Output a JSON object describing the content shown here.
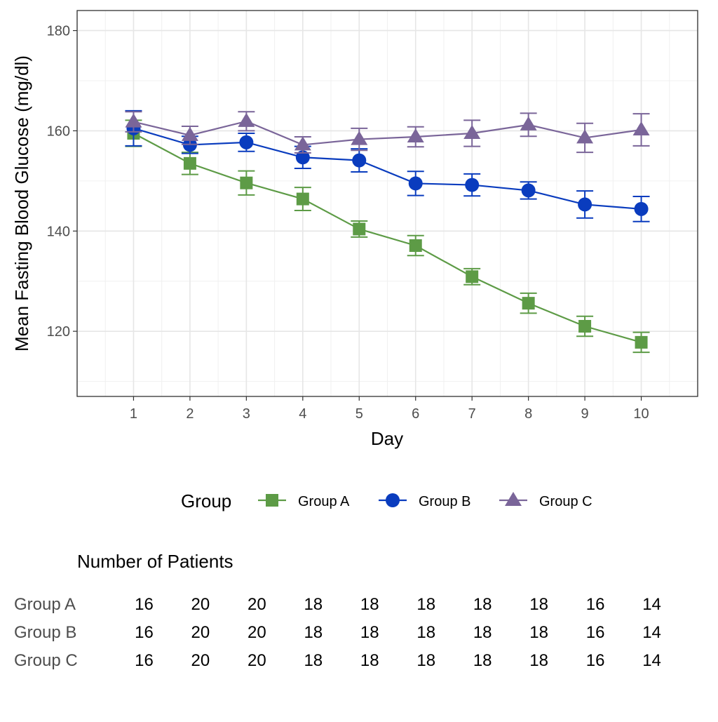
{
  "chart_data": {
    "type": "line",
    "xlabel": "Day",
    "ylabel": "Mean Fasting Blood Glucose (mg/dl)",
    "x": [
      1,
      2,
      3,
      4,
      5,
      6,
      7,
      8,
      9,
      10
    ],
    "xlim": [
      0,
      11
    ],
    "ylim": [
      107,
      184
    ],
    "yticks": [
      120,
      140,
      160,
      180
    ],
    "grid": true,
    "legend": {
      "title": "Group",
      "position": "bottom"
    },
    "series": [
      {
        "name": "Group A",
        "color": "#5d9b46",
        "marker": "square",
        "values": [
          159.5,
          153.5,
          149.6,
          146.4,
          140.4,
          137.1,
          130.9,
          125.6,
          121.0,
          117.8
        ],
        "error": [
          2.6,
          2.2,
          2.4,
          2.3,
          1.6,
          2.0,
          1.6,
          2.0,
          2.0,
          2.0
        ]
      },
      {
        "name": "Group B",
        "color": "#0a3cbe",
        "marker": "circle",
        "values": [
          160.5,
          157.2,
          157.7,
          154.7,
          154.1,
          149.5,
          149.2,
          148.1,
          145.3,
          144.4
        ],
        "error": [
          3.5,
          1.7,
          1.8,
          2.2,
          2.3,
          2.4,
          2.2,
          1.7,
          2.7,
          2.5
        ]
      },
      {
        "name": "Group C",
        "color": "#7a6599",
        "marker": "triangle",
        "values": [
          161.8,
          159.1,
          161.9,
          157.2,
          158.3,
          158.8,
          159.5,
          161.2,
          158.6,
          160.2
        ],
        "error": [
          2.0,
          1.8,
          1.9,
          1.6,
          2.2,
          2.0,
          2.6,
          2.3,
          2.9,
          3.2
        ]
      }
    ]
  },
  "risk_table": {
    "title": "Number of Patients",
    "rows": [
      {
        "label": "Group A",
        "counts": [
          16,
          20,
          20,
          18,
          18,
          18,
          18,
          18,
          16,
          14
        ]
      },
      {
        "label": "Group B",
        "counts": [
          16,
          20,
          20,
          18,
          18,
          18,
          18,
          18,
          16,
          14
        ]
      },
      {
        "label": "Group C",
        "counts": [
          16,
          20,
          20,
          18,
          18,
          18,
          18,
          18,
          16,
          14
        ]
      }
    ]
  }
}
